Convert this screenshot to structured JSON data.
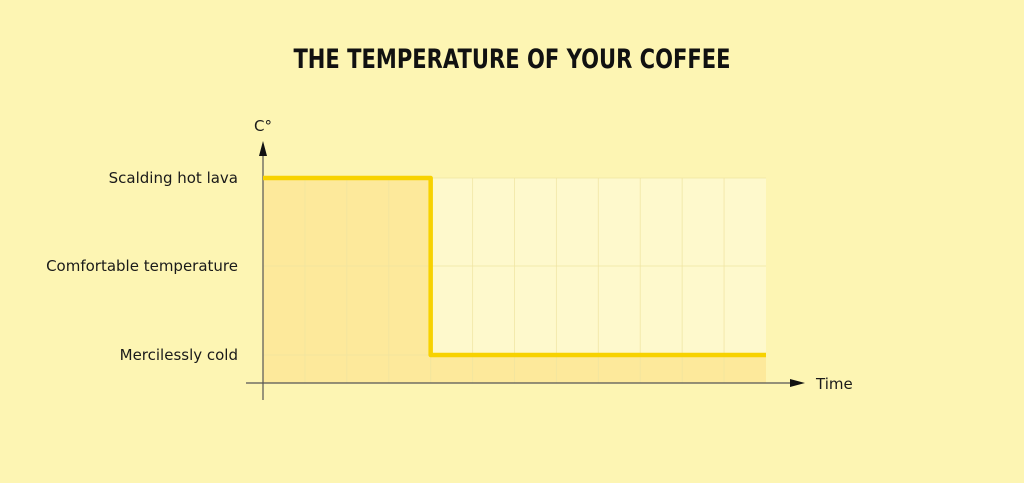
{
  "chart_data": {
    "type": "line",
    "title": "THE TEMPERATURE OF YOUR COFFEE",
    "xlabel": "Time",
    "ylabel": "C°",
    "y_categories": [
      "Mercilessly cold",
      "Comfortable temperature",
      "Scalding hot lava"
    ],
    "xlim": [
      0,
      12
    ],
    "grid": true,
    "series": [
      {
        "points": [
          [
            0,
            "Scalding hot lava"
          ],
          [
            4,
            "Scalding hot lava"
          ],
          [
            4,
            "Mercilessly cold"
          ],
          [
            12,
            "Mercilessly cold"
          ]
        ]
      }
    ],
    "colors": {
      "background": "#fdf5b3",
      "plot_area": "#fef9cc",
      "fill": "#fde99b",
      "line": "#f7d200",
      "axis": "#555555"
    }
  }
}
